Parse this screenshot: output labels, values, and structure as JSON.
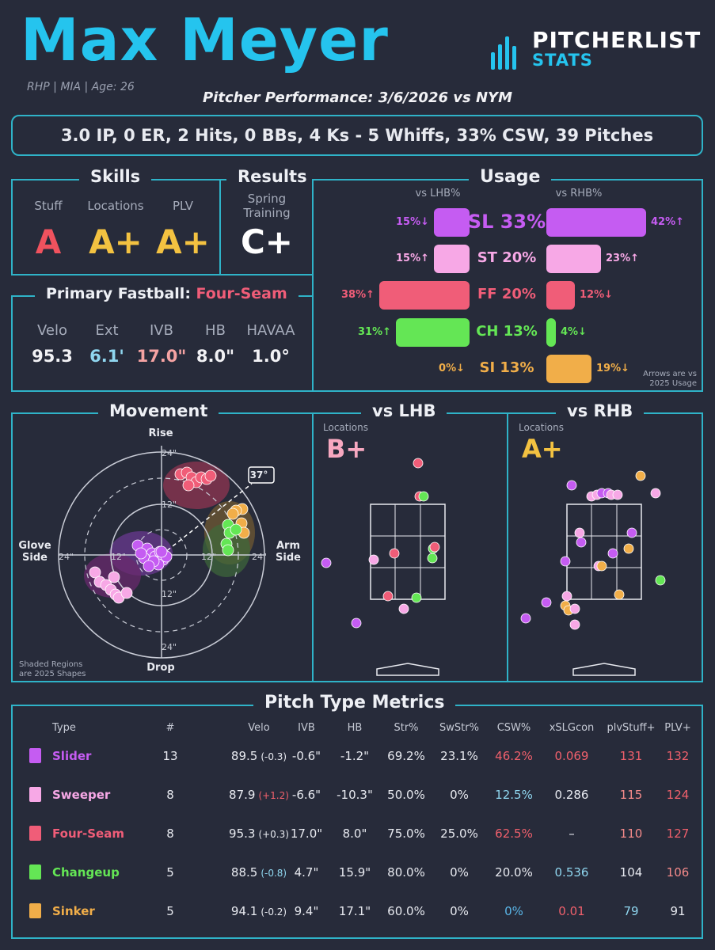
{
  "header": {
    "name": "Max Meyer",
    "meta": "RHP | MIA | Age: 26",
    "performance": "Pitcher Performance: 3/6/2026 vs NYM",
    "logo_top": "PITCHERLIST",
    "logo_bottom": "STATS"
  },
  "summary": "3.0 IP, 0 ER, 2 Hits, 0 BBs, 4 Ks - 5 Whiffs, 33% CSW, 39 Pitches",
  "skills": {
    "title": "Skills",
    "items": [
      {
        "label": "Stuff",
        "grade": "A",
        "color": "#f0525e"
      },
      {
        "label": "Locations",
        "grade": "A+",
        "color": "#f3c241"
      },
      {
        "label": "PLV",
        "grade": "A+",
        "color": "#f3c241"
      }
    ]
  },
  "results": {
    "title": "Results",
    "label_line1": "Spring",
    "label_line2": "Training",
    "grade": "C+"
  },
  "fastball": {
    "title": "Primary Fastball:",
    "pitch": "Four-Seam",
    "stats": [
      {
        "label": "Velo",
        "value": "95.3",
        "color": "#f2f2f5"
      },
      {
        "label": "Ext",
        "value": "6.1'",
        "color": "#8fd6ef"
      },
      {
        "label": "IVB",
        "value": "17.0\"",
        "color": "#f5a3a3"
      },
      {
        "label": "HB",
        "value": "8.0\"",
        "color": "#f2f2f5"
      },
      {
        "label": "HAVAA",
        "value": "1.0°",
        "color": "#f2f2f5"
      }
    ]
  },
  "usage": {
    "title": "Usage",
    "lhb_header": "vs LHB%",
    "rhb_header": "vs RHB%",
    "note_line1": "Arrows are vs",
    "note_line2": "2025 Usage",
    "pitches": [
      {
        "label": "SL 33%",
        "color": "#c55cf2",
        "lhb": 15,
        "lhb_text": "15%↓",
        "rhb": 42,
        "rhb_text": "42%↑"
      },
      {
        "label": "ST 20%",
        "color": "#f7a8e6",
        "lhb": 15,
        "lhb_text": "15%↑",
        "rhb": 23,
        "rhb_text": "23%↑"
      },
      {
        "label": "FF 20%",
        "color": "#f05d78",
        "lhb": 38,
        "lhb_text": "38%↑",
        "rhb": 12,
        "rhb_text": "12%↓"
      },
      {
        "label": "CH 13%",
        "color": "#64e655",
        "lhb": 31,
        "lhb_text": "31%↑",
        "rhb": 4,
        "rhb_text": "4%↓"
      },
      {
        "label": "SI 13%",
        "color": "#f1ae49",
        "lhb": 0,
        "lhb_text": "0%↓",
        "rhb": 19,
        "rhb_text": "19%↓"
      }
    ]
  },
  "movement": {
    "title": "Movement",
    "top": "Rise",
    "bottom": "Drop",
    "left_line1": "Glove",
    "left_line2": "Side",
    "right_line1": "Arm",
    "right_line2": "Side",
    "ring_labels": [
      "24\"",
      "12\"",
      "12\"",
      "24\"",
      "24\"",
      "12\"",
      "12\"",
      "24\""
    ],
    "arm_angle": "37°",
    "note_line1": "Shaded Regions",
    "note_line2": "are 2025 Shapes"
  },
  "lhb": {
    "title": "vs LHB",
    "sub": "Locations",
    "grade": "B+",
    "grade_color": "#f7a8c0"
  },
  "rhb": {
    "title": "vs RHB",
    "sub": "Locations",
    "grade": "A+",
    "grade_color": "#f3c241"
  },
  "metrics": {
    "title": "Pitch Type Metrics",
    "headers": [
      "Type",
      "#",
      "Velo",
      "IVB",
      "HB",
      "Str%",
      "SwStr%",
      "CSW%",
      "xSLGcon",
      "plvStuff+",
      "PLV+"
    ],
    "rows": [
      {
        "name": "Slider",
        "color": "#c55cf2",
        "n": "13",
        "velo": "89.5",
        "delta": "(-0.3)",
        "delta_color": "#e8eaf0",
        "ivb": "-0.6\"",
        "hb": "-1.2\"",
        "str": "69.2%",
        "sw": "23.1%",
        "csw": "46.2%",
        "csw_c": "#f0606c",
        "xslg": "0.069",
        "xslg_c": "#f0606c",
        "stuff": "131",
        "stuff_c": "#f0606c",
        "plv": "132",
        "plv_c": "#f0606c"
      },
      {
        "name": "Sweeper",
        "color": "#f7a8e6",
        "n": "8",
        "velo": "87.9",
        "delta": "(+1.2)",
        "delta_color": "#f0606c",
        "ivb": "-6.6\"",
        "hb": "-10.3\"",
        "str": "50.0%",
        "sw": "0%",
        "csw": "12.5%",
        "csw_c": "#8fd6ef",
        "xslg": "0.286",
        "xslg_c": "#e8eaf0",
        "stuff": "115",
        "stuff_c": "#f48a8a",
        "plv": "124",
        "plv_c": "#f0606c"
      },
      {
        "name": "Four-Seam",
        "color": "#f05d78",
        "n": "8",
        "velo": "95.3",
        "delta": "(+0.3)",
        "delta_color": "#e8eaf0",
        "ivb": "17.0\"",
        "hb": "8.0\"",
        "str": "75.0%",
        "sw": "25.0%",
        "csw": "62.5%",
        "csw_c": "#f0606c",
        "xslg": "–",
        "xslg_c": "#e8eaf0",
        "stuff": "110",
        "stuff_c": "#f48a8a",
        "plv": "127",
        "plv_c": "#f0606c"
      },
      {
        "name": "Changeup",
        "color": "#64e655",
        "n": "5",
        "velo": "88.5",
        "delta": "(-0.8)",
        "delta_color": "#8fd6ef",
        "ivb": "4.7\"",
        "hb": "15.9\"",
        "str": "80.0%",
        "sw": "0%",
        "csw": "20.0%",
        "csw_c": "#e8eaf0",
        "xslg": "0.536",
        "xslg_c": "#8fd6ef",
        "stuff": "104",
        "stuff_c": "#e8eaf0",
        "plv": "106",
        "plv_c": "#f48a8a"
      },
      {
        "name": "Sinker",
        "color": "#f1ae49",
        "n": "5",
        "velo": "94.1",
        "delta": "(-0.2)",
        "delta_color": "#e8eaf0",
        "ivb": "9.4\"",
        "hb": "17.1\"",
        "str": "60.0%",
        "sw": "0%",
        "csw": "0%",
        "csw_c": "#5ab6e8",
        "xslg": "0.01",
        "xslg_c": "#f0606c",
        "stuff": "79",
        "stuff_c": "#8fd6ef",
        "plv": "91",
        "plv_c": "#e8eaf0"
      }
    ]
  }
}
